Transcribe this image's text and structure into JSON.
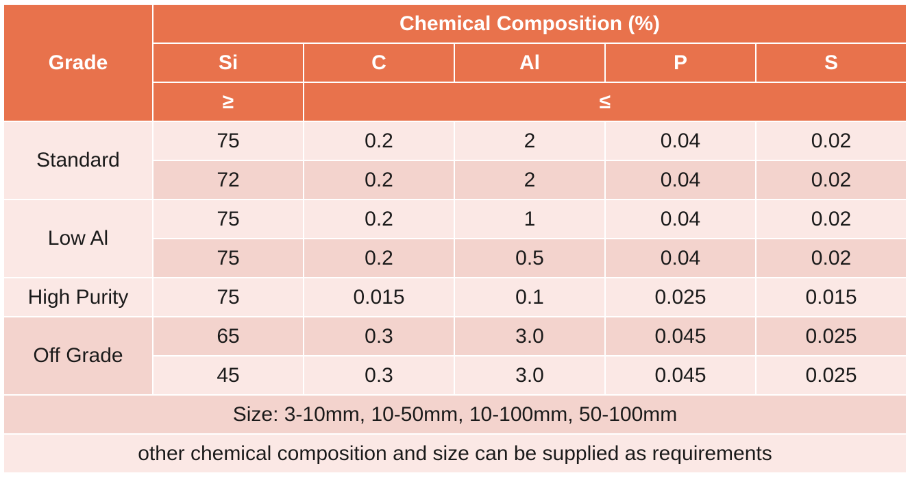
{
  "header": {
    "grade": "Grade",
    "composition": "Chemical Composition (%)",
    "elements": [
      "Si",
      "C",
      "Al",
      "P",
      "S"
    ],
    "min_symbol": "≥",
    "max_symbol": "≤"
  },
  "groups": [
    {
      "grade": "Standard",
      "rows": [
        [
          "75",
          "0.2",
          "2",
          "0.04",
          "0.02"
        ],
        [
          "72",
          "0.2",
          "2",
          "0.04",
          "0.02"
        ]
      ]
    },
    {
      "grade": "Low Al",
      "rows": [
        [
          "75",
          "0.2",
          "1",
          "0.04",
          "0.02"
        ],
        [
          "75",
          "0.2",
          "0.5",
          "0.04",
          "0.02"
        ]
      ]
    },
    {
      "grade": "High Purity",
      "rows": [
        [
          "75",
          "0.015",
          "0.1",
          "0.025",
          "0.015"
        ]
      ]
    },
    {
      "grade": "Off Grade",
      "rows": [
        [
          "65",
          "0.3",
          "3.0",
          "0.045",
          "0.025"
        ],
        [
          "45",
          "0.3",
          "3.0",
          "0.045",
          "0.025"
        ]
      ]
    }
  ],
  "footer": {
    "size": "Size: 3-10mm, 10-50mm, 10-100mm, 50-100mm",
    "note": "other chemical composition and size can be supplied as requirements"
  },
  "colors": {
    "header_bg": "#e8724c",
    "row_light": "#fbe8e5",
    "row_dark": "#f3d3cd"
  }
}
